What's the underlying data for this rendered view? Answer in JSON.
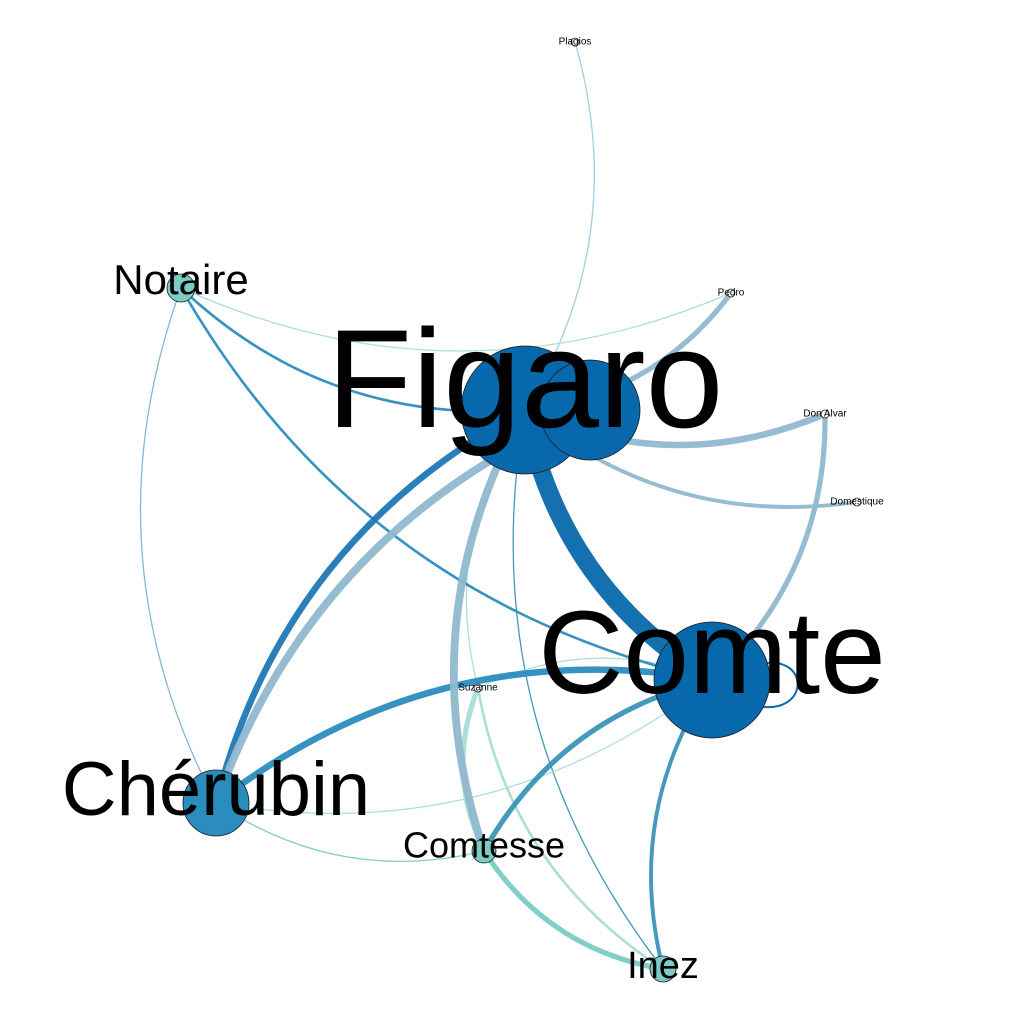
{
  "graph": {
    "nodes": [
      {
        "id": "figaro",
        "label": "Figaro",
        "color": "#0868ac"
      },
      {
        "id": "figaro2",
        "label": "",
        "color": "#0868ac"
      },
      {
        "id": "comte",
        "label": "Comte",
        "color": "#0868ac"
      },
      {
        "id": "cherubin",
        "label": "Chérubin",
        "color": "#2b8cbe"
      },
      {
        "id": "notaire",
        "label": "Notaire",
        "color": "#7bccc4"
      },
      {
        "id": "comtesse",
        "label": "Comtesse",
        "color": "#7bccc4"
      },
      {
        "id": "inez",
        "label": "Inez",
        "color": "#7bccc4"
      },
      {
        "id": "suzanne",
        "label": "Suzanne",
        "color": "#ffffff"
      },
      {
        "id": "plagios",
        "label": "Plagios",
        "color": "#ffffff"
      },
      {
        "id": "pedro",
        "label": "Pedro",
        "color": "#ffffff"
      },
      {
        "id": "donalvar",
        "label": "Don Alvar",
        "color": "#ffffff"
      },
      {
        "id": "domestique",
        "label": "Domestique",
        "color": "#ffffff"
      }
    ],
    "edges": [
      {
        "from": "figaro",
        "to": "comte",
        "weight": 14,
        "color": "#0868ac"
      },
      {
        "from": "figaro",
        "to": "cherubin",
        "weight": 5,
        "color": "#1f78b4"
      },
      {
        "from": "comte",
        "to": "cherubin",
        "weight": 5,
        "color": "#2b8cbe"
      },
      {
        "from": "figaro",
        "to": "comtesse",
        "weight": 6,
        "color": "#8fb8cf"
      },
      {
        "from": "figaro2",
        "to": "cherubin",
        "weight": 6,
        "color": "#8fb8cf"
      },
      {
        "from": "figaro",
        "to": "donalvar",
        "weight": 5,
        "color": "#8fb8cf"
      },
      {
        "from": "comte",
        "to": "donalvar",
        "weight": 4,
        "color": "#8fb8cf"
      },
      {
        "from": "figaro",
        "to": "pedro",
        "weight": 4,
        "color": "#8fb8cf"
      },
      {
        "from": "figaro",
        "to": "plagios",
        "weight": 1,
        "color": "#9ecae1"
      },
      {
        "from": "notaire",
        "to": "pedro",
        "weight": 1,
        "color": "#a8ddd5"
      },
      {
        "from": "notaire",
        "to": "figaro",
        "weight": 2,
        "color": "#2b8cbe"
      },
      {
        "from": "notaire",
        "to": "comte",
        "weight": 2,
        "color": "#2b8cbe"
      },
      {
        "from": "notaire",
        "to": "cherubin",
        "weight": 1,
        "color": "#7bb6cf"
      },
      {
        "from": "comte",
        "to": "comtesse",
        "weight": 4,
        "color": "#3a93b8"
      },
      {
        "from": "comte",
        "to": "inez",
        "weight": 3,
        "color": "#3a93b8"
      },
      {
        "from": "comtesse",
        "to": "inez",
        "weight": 4,
        "color": "#7bccc4"
      },
      {
        "from": "suzanne",
        "to": "inez",
        "weight": 2,
        "color": "#a8ddd5"
      },
      {
        "from": "suzanne",
        "to": "comtesse",
        "weight": 4,
        "color": "#a8ddd5"
      },
      {
        "from": "figaro",
        "to": "inez",
        "weight": 1,
        "color": "#3a93b8"
      },
      {
        "from": "figaro",
        "to": "domestique",
        "weight": 3,
        "color": "#8fb8cf"
      },
      {
        "from": "cherubin",
        "to": "comtesse",
        "weight": 1,
        "color": "#7bccc4"
      },
      {
        "from": "cherubin",
        "to": "comte",
        "weight": 1,
        "color": "#a8ddd5"
      },
      {
        "from": "figaro",
        "to": "suzanne",
        "weight": 1,
        "color": "#a8ddd5"
      },
      {
        "from": "comte",
        "to": "suzanne",
        "weight": 1,
        "color": "#a8ddd5"
      }
    ]
  }
}
